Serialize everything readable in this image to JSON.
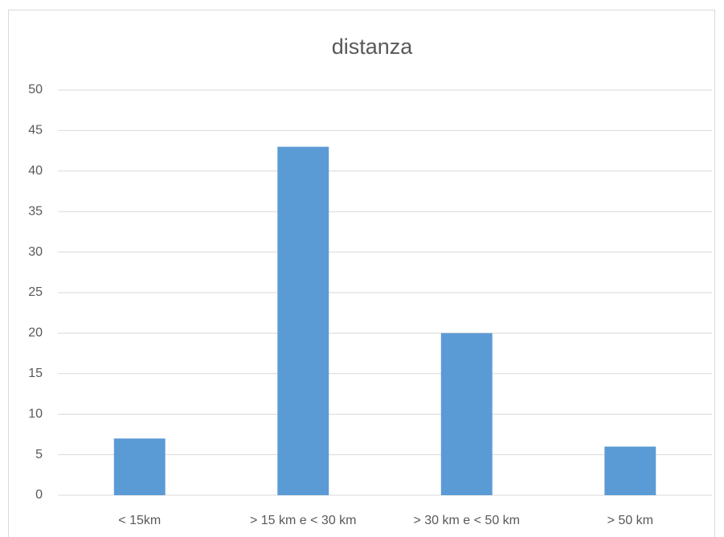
{
  "chart_data": {
    "type": "bar",
    "title": "distanza",
    "categories": [
      "< 15km",
      "> 15 km e < 30 km",
      "> 30 km e < 50 km",
      "> 50 km"
    ],
    "values": [
      7,
      43,
      20,
      6
    ],
    "color": "#5b9bd5",
    "ylim": [
      0,
      50
    ],
    "yticks": [
      0,
      5,
      10,
      15,
      20,
      25,
      30,
      35,
      40,
      45,
      50
    ],
    "grid": true
  }
}
